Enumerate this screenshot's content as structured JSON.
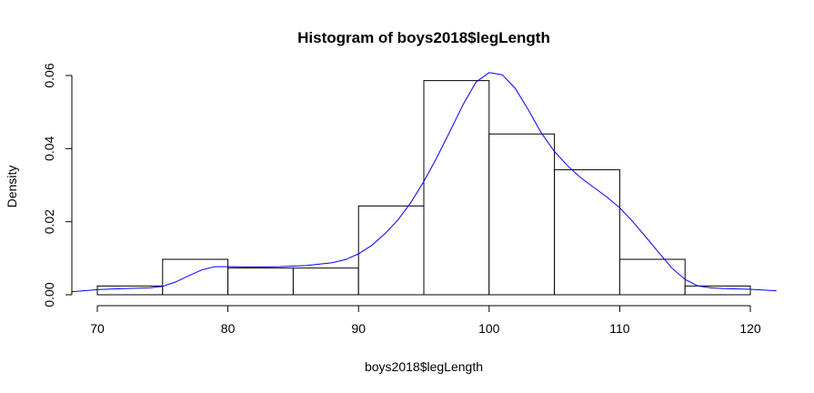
{
  "chart_data": {
    "type": "bar",
    "title": "Histogram of boys2018$legLength",
    "xlabel": "boys2018$legLength",
    "ylabel": "Density",
    "xlim": [
      68,
      122
    ],
    "ylim": [
      0,
      0.061
    ],
    "x_ticks": [
      70,
      80,
      90,
      100,
      110,
      120
    ],
    "y_ticks": [
      0.0,
      0.02,
      0.04,
      0.06
    ],
    "y_tick_labels": [
      "0.00",
      "0.02",
      "0.04",
      "0.06"
    ],
    "bins": [
      {
        "from": 70,
        "to": 75,
        "density": 0.0024
      },
      {
        "from": 75,
        "to": 80,
        "density": 0.0097
      },
      {
        "from": 80,
        "to": 85,
        "density": 0.0073
      },
      {
        "from": 85,
        "to": 90,
        "density": 0.0073
      },
      {
        "from": 90,
        "to": 95,
        "density": 0.0243
      },
      {
        "from": 95,
        "to": 100,
        "density": 0.0586
      },
      {
        "from": 100,
        "to": 105,
        "density": 0.044
      },
      {
        "from": 105,
        "to": 110,
        "density": 0.0342
      },
      {
        "from": 110,
        "to": 115,
        "density": 0.0097
      },
      {
        "from": 115,
        "to": 120,
        "density": 0.0024
      }
    ],
    "density_curve": {
      "color": "#0000ff",
      "x": [
        68.0,
        70.0,
        72.0,
        74.0,
        75.0,
        76.0,
        77.0,
        78.0,
        79.0,
        80.0,
        82.0,
        84.0,
        86.0,
        88.0,
        89.0,
        90.0,
        91.0,
        92.0,
        93.0,
        94.0,
        95.0,
        96.0,
        97.0,
        98.0,
        99.0,
        100.0,
        101.0,
        102.0,
        103.0,
        104.0,
        105.0,
        106.0,
        107.0,
        108.0,
        109.0,
        110.0,
        111.0,
        112.0,
        113.0,
        114.0,
        115.0,
        116.0,
        117.0,
        118.0,
        120.0,
        122.0
      ],
      "y": [
        0.0008,
        0.0014,
        0.0017,
        0.0019,
        0.0023,
        0.0035,
        0.0052,
        0.0068,
        0.0077,
        0.0077,
        0.0076,
        0.0077,
        0.008,
        0.0088,
        0.0096,
        0.0112,
        0.0135,
        0.0166,
        0.0204,
        0.0252,
        0.031,
        0.0376,
        0.0447,
        0.052,
        0.0582,
        0.0608,
        0.0602,
        0.0565,
        0.0506,
        0.0443,
        0.0392,
        0.0353,
        0.0321,
        0.0294,
        0.0268,
        0.0238,
        0.02,
        0.0158,
        0.0115,
        0.0073,
        0.0042,
        0.0024,
        0.0019,
        0.0017,
        0.0015,
        0.0011
      ]
    }
  }
}
